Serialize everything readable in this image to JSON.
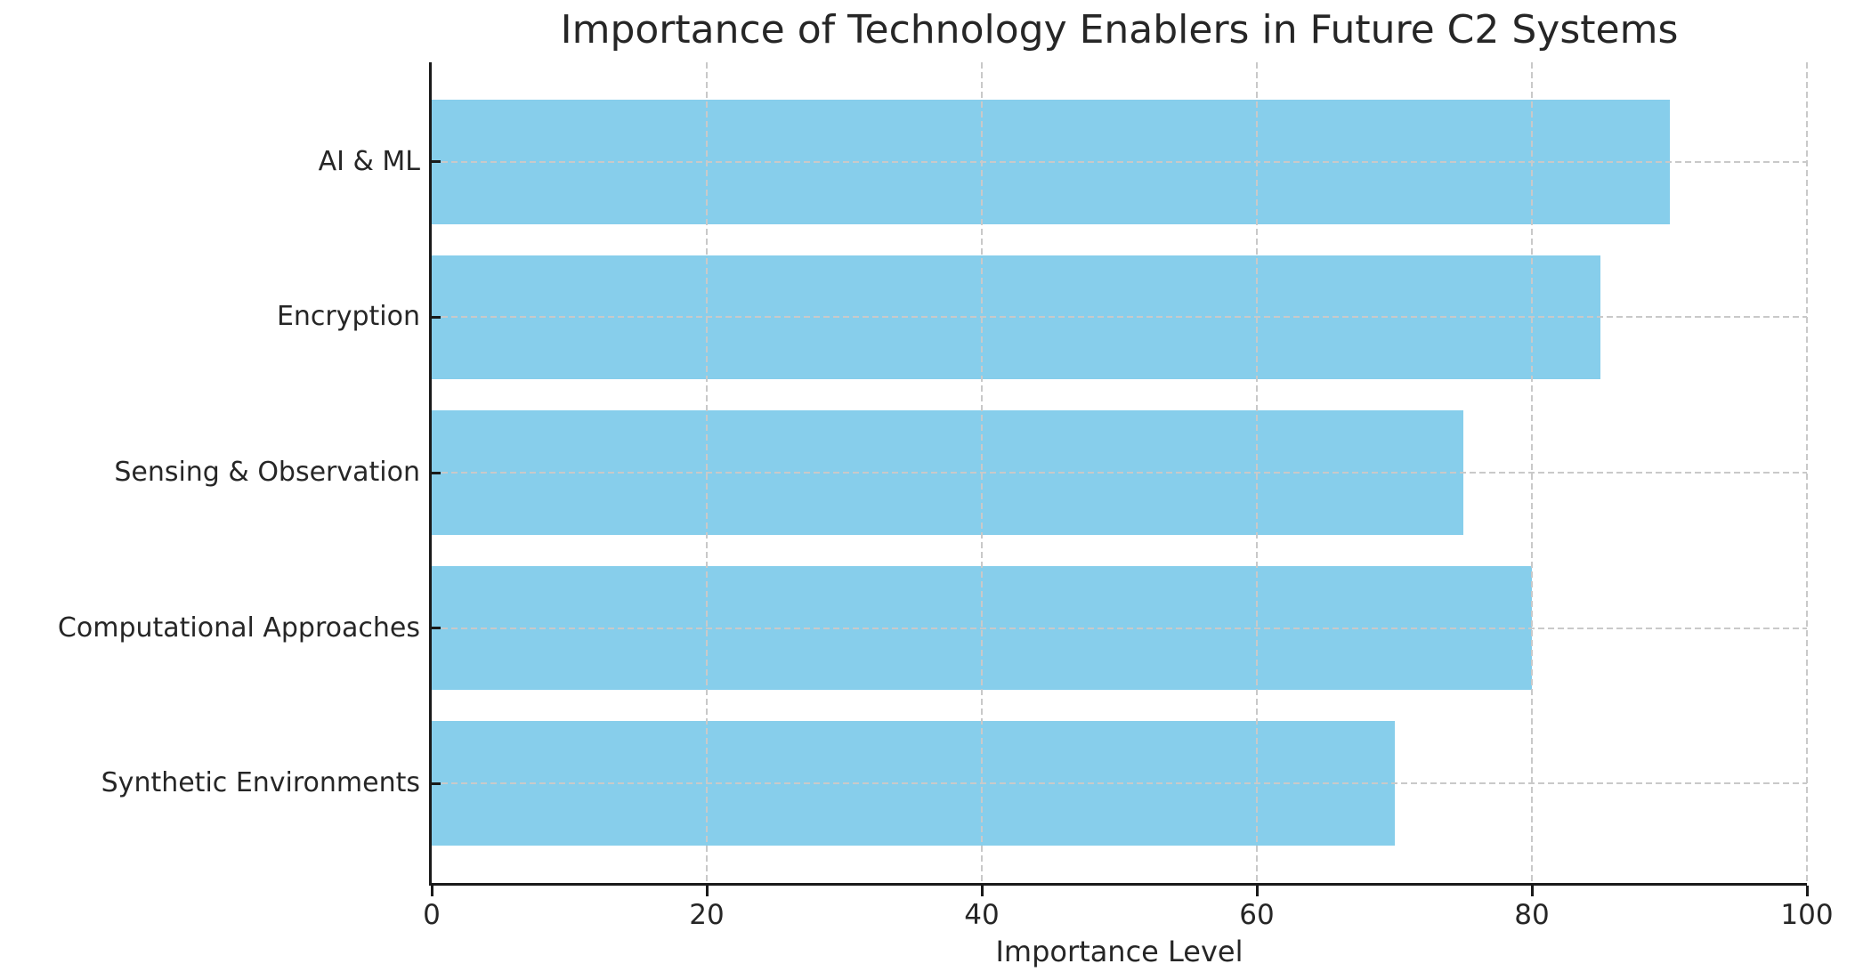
{
  "chart_data": {
    "type": "bar",
    "orientation": "horizontal",
    "title": "Importance of Technology Enablers in Future C2 Systems",
    "xlabel": "Importance Level",
    "categories": [
      "AI & ML",
      "Encryption",
      "Sensing & Observation",
      "Computational Approaches",
      "Synthetic Environments"
    ],
    "values": [
      90,
      85,
      75,
      80,
      70
    ],
    "xticks": [
      0,
      20,
      40,
      60,
      80,
      100
    ],
    "xlim": [
      0,
      100
    ],
    "bar_color": "#87CEEB",
    "grid": {
      "visible": true,
      "style": "dashed",
      "color": "#c9c9c9",
      "on_top": true
    },
    "axis_color": "#1a1a1a",
    "text_color": "#262626",
    "background_color": "#ffffff",
    "legend": "none"
  }
}
